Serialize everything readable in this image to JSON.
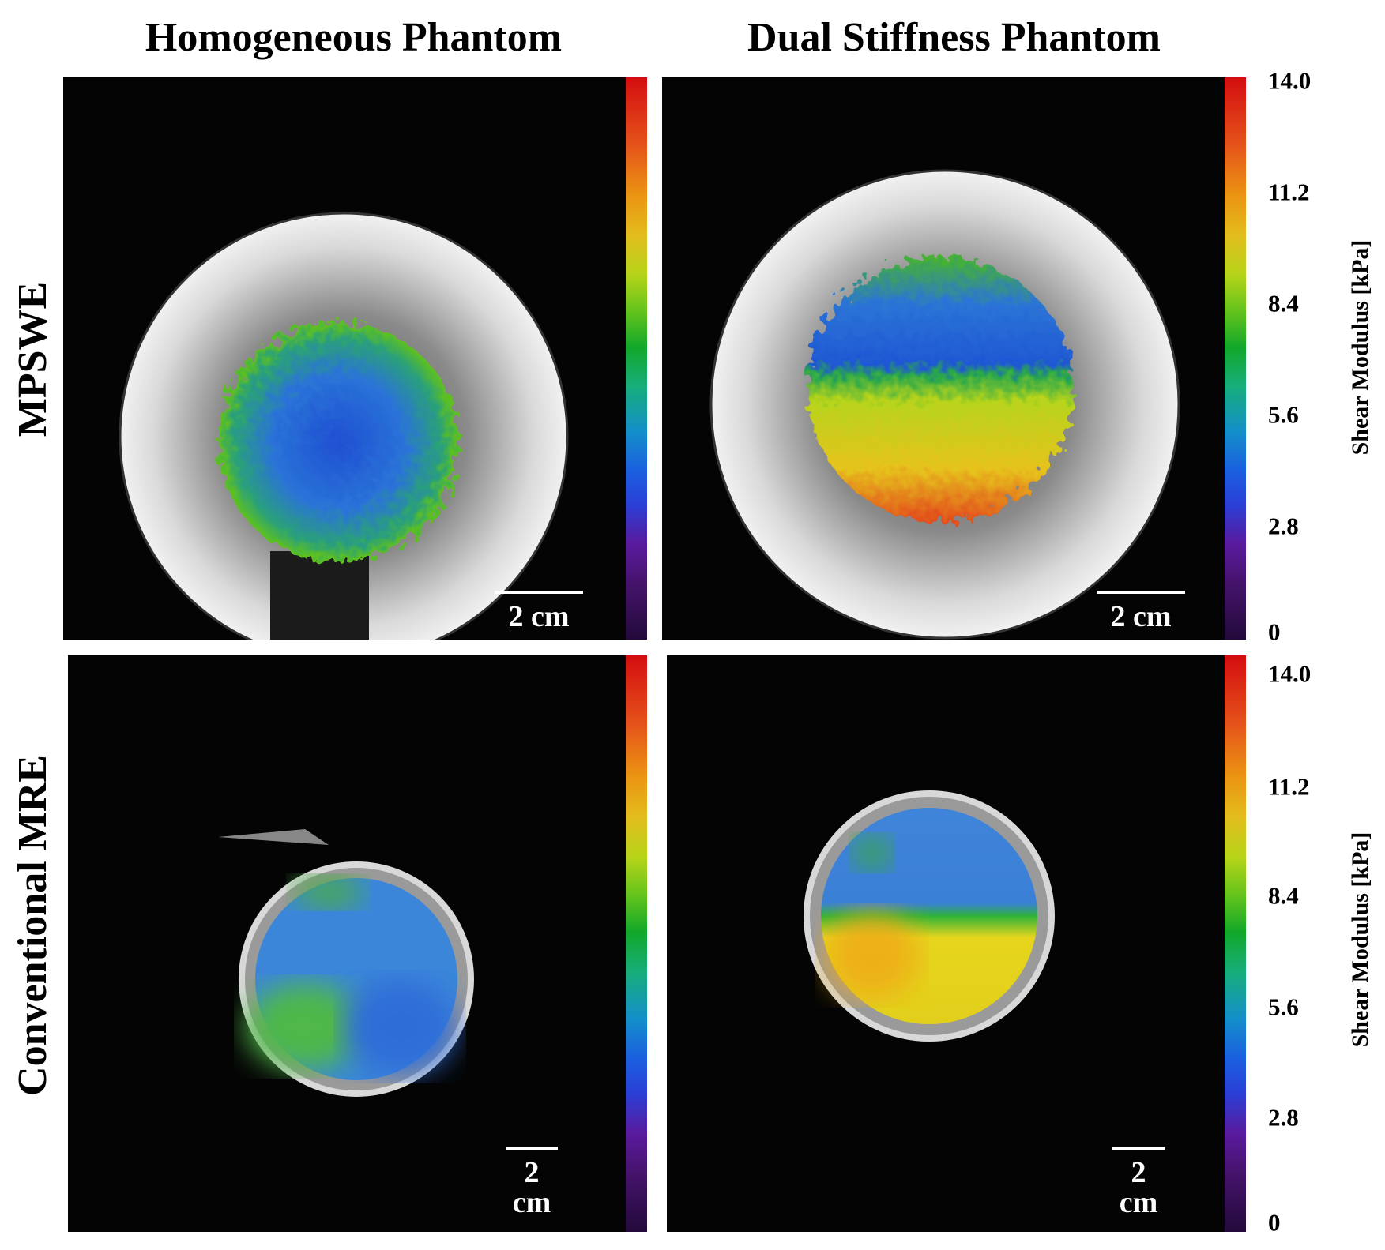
{
  "columns": {
    "left_title": "Homogeneous Phantom",
    "right_title": "Dual Stiffness Phantom"
  },
  "rows": {
    "top_title": "MPSWE",
    "bottom_title": "Conventional MRE"
  },
  "scale_bar": {
    "label": "2 cm"
  },
  "colorbar": {
    "title": "Shear Modulus [kPa]",
    "ticks": [
      "14.0",
      "11.2",
      "8.4",
      "5.6",
      "2.8",
      "0"
    ],
    "min": 0,
    "max": 14.0,
    "colormap_stops": [
      "#230a3b",
      "#5a1a9e",
      "#2a3fd6",
      "#138fc9",
      "#17ae7c",
      "#12a82a",
      "#b7d419",
      "#e3bc1c",
      "#eb9412",
      "#d40d10"
    ]
  },
  "panels": {
    "mpswe_homogeneous": {
      "dominant_color": "#2a6ad8"
    },
    "mpswe_dual": {
      "upper_color": "#2a6ad8",
      "lower_color": "#e3c21a"
    },
    "mre_homogeneous": {
      "dominant_color": "#3b86d9"
    },
    "mre_dual": {
      "upper_color": "#3f84d8",
      "lower_color": "#e5d51c"
    }
  }
}
